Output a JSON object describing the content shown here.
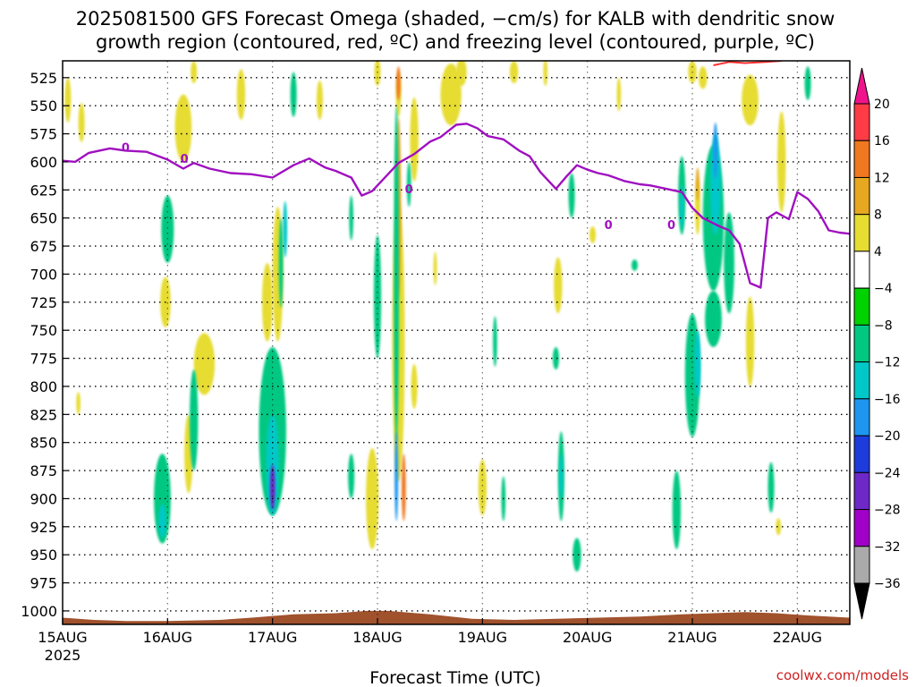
{
  "chart_data": {
    "type": "heatmap",
    "title_line1": "2025081500 GFS Forecast Omega (shaded, −cm/s) for KALB with dendritic snow",
    "title_line2": "growth region (contoured, red, ºC) and freezing level (contoured, purple, ºC)",
    "xlabel": "Forecast Time (UTC)",
    "credit": "coolwx.com/models",
    "x_ticks": [
      "15AUG",
      "16AUG",
      "17AUG",
      "18AUG",
      "19AUG",
      "20AUG",
      "21AUG",
      "22AUG"
    ],
    "x_year": "2025",
    "x_range_days": [
      0,
      7.5
    ],
    "y_ticks": [
      525,
      550,
      575,
      600,
      625,
      650,
      675,
      700,
      725,
      750,
      775,
      800,
      825,
      850,
      875,
      900,
      925,
      950,
      975,
      1000
    ],
    "y_range_hpa": [
      510,
      1012
    ],
    "grid": true,
    "colorbar": {
      "levels": [
        "20",
        "16",
        "12",
        "8",
        "4",
        "−4",
        "−8",
        "−12",
        "−16",
        "−20",
        "−24",
        "−28",
        "−32",
        "−36"
      ],
      "colors": [
        "#ff3c46",
        "#f07820",
        "#e6a820",
        "#e6dc32",
        "#ffffff",
        "#00d200",
        "#00c882",
        "#00c8c8",
        "#1e96f0",
        "#1e3cdc",
        "#6e28c8",
        "#a000c8",
        "#aaaaaa"
      ],
      "top_arrow_color": "#f0148c",
      "bottom_arrow_color": "#000000"
    },
    "freezing_level": {
      "name": "0",
      "color": "#a010c0",
      "label": "0",
      "label_positions": [
        [
          0.6,
          587
        ],
        [
          1.16,
          597
        ],
        [
          3.3,
          624
        ],
        [
          5.2,
          656
        ],
        [
          5.8,
          656
        ]
      ],
      "points": [
        [
          0.0,
          599
        ],
        [
          0.12,
          600
        ],
        [
          0.25,
          592
        ],
        [
          0.45,
          588
        ],
        [
          0.6,
          590
        ],
        [
          0.8,
          591
        ],
        [
          1.0,
          598
        ],
        [
          1.15,
          606
        ],
        [
          1.25,
          601
        ],
        [
          1.4,
          606
        ],
        [
          1.6,
          610
        ],
        [
          1.8,
          611
        ],
        [
          2.0,
          614
        ],
        [
          2.2,
          603
        ],
        [
          2.35,
          597
        ],
        [
          2.5,
          605
        ],
        [
          2.6,
          608
        ],
        [
          2.75,
          614
        ],
        [
          2.85,
          630
        ],
        [
          2.95,
          626
        ],
        [
          3.1,
          611
        ],
        [
          3.2,
          601
        ],
        [
          3.35,
          593
        ],
        [
          3.5,
          582
        ],
        [
          3.6,
          578
        ],
        [
          3.75,
          567
        ],
        [
          3.85,
          566
        ],
        [
          3.95,
          570
        ],
        [
          4.05,
          577
        ],
        [
          4.2,
          580
        ],
        [
          4.35,
          590
        ],
        [
          4.45,
          595
        ],
        [
          4.55,
          609
        ],
        [
          4.7,
          624
        ],
        [
          4.8,
          613
        ],
        [
          4.9,
          603
        ],
        [
          5.0,
          607
        ],
        [
          5.1,
          610
        ],
        [
          5.2,
          612
        ],
        [
          5.35,
          617
        ],
        [
          5.5,
          620
        ],
        [
          5.6,
          621
        ],
        [
          5.75,
          624
        ],
        [
          5.9,
          627
        ],
        [
          6.0,
          641
        ],
        [
          6.1,
          650
        ],
        [
          6.25,
          657
        ],
        [
          6.35,
          661
        ],
        [
          6.45,
          673
        ],
        [
          6.55,
          708
        ],
        [
          6.65,
          712
        ],
        [
          6.72,
          650
        ],
        [
          6.8,
          645
        ],
        [
          6.92,
          651
        ],
        [
          7.0,
          627
        ],
        [
          7.1,
          633
        ],
        [
          7.2,
          644
        ],
        [
          7.3,
          661
        ],
        [
          7.4,
          663
        ],
        [
          7.5,
          664
        ]
      ]
    },
    "dgz_contour": {
      "color": "#ff3030",
      "points": [
        [
          6.2,
          514
        ],
        [
          6.35,
          511
        ],
        [
          6.5,
          512
        ],
        [
          6.7,
          511
        ],
        [
          6.85,
          510
        ]
      ]
    },
    "terrain": {
      "color": "#a0522d",
      "points": [
        [
          0.0,
          1006
        ],
        [
          0.3,
          1008
        ],
        [
          0.6,
          1009
        ],
        [
          1.0,
          1009
        ],
        [
          1.5,
          1008
        ],
        [
          1.8,
          1006
        ],
        [
          2.2,
          1003
        ],
        [
          2.6,
          1002
        ],
        [
          2.9,
          1000
        ],
        [
          3.1,
          1000
        ],
        [
          3.5,
          1003
        ],
        [
          3.9,
          1007
        ],
        [
          4.3,
          1008
        ],
        [
          4.7,
          1007
        ],
        [
          5.1,
          1006
        ],
        [
          5.5,
          1005
        ],
        [
          5.9,
          1003
        ],
        [
          6.2,
          1002
        ],
        [
          6.5,
          1001
        ],
        [
          6.8,
          1002
        ],
        [
          7.1,
          1004
        ],
        [
          7.5,
          1006
        ]
      ]
    },
    "omega_cells": [
      {
        "x": 0.05,
        "p": 545,
        "rx": 0.03,
        "rh": 40,
        "v": 4
      },
      {
        "x": 0.18,
        "p": 565,
        "rx": 0.03,
        "rh": 35,
        "v": 4
      },
      {
        "x": 1.15,
        "p": 570,
        "rx": 0.08,
        "rh": 60,
        "v": 4
      },
      {
        "x": 1.25,
        "p": 520,
        "rx": 0.03,
        "rh": 20,
        "v": 4
      },
      {
        "x": 0.98,
        "p": 725,
        "rx": 0.05,
        "rh": 45,
        "v": 4
      },
      {
        "x": 1.35,
        "p": 780,
        "rx": 0.1,
        "rh": 55,
        "v": 4
      },
      {
        "x": 0.95,
        "p": 900,
        "rx": 0.08,
        "rh": 80,
        "v": -8
      },
      {
        "x": 0.95,
        "p": 920,
        "rx": 0.035,
        "rh": 30,
        "v": -12
      },
      {
        "x": 1.2,
        "p": 860,
        "rx": 0.04,
        "rh": 70,
        "v": 4
      },
      {
        "x": 1.0,
        "p": 660,
        "rx": 0.06,
        "rh": 60,
        "v": -8
      },
      {
        "x": 1.25,
        "p": 830,
        "rx": 0.04,
        "rh": 90,
        "v": -8
      },
      {
        "x": 0.15,
        "p": 815,
        "rx": 0.02,
        "rh": 20,
        "v": 4
      },
      {
        "x": 1.7,
        "p": 540,
        "rx": 0.04,
        "rh": 45,
        "v": 4
      },
      {
        "x": 2.0,
        "p": 840,
        "rx": 0.13,
        "rh": 150,
        "v": -8
      },
      {
        "x": 2.0,
        "p": 870,
        "rx": 0.06,
        "rh": 90,
        "v": -12
      },
      {
        "x": 2.0,
        "p": 890,
        "rx": 0.025,
        "rh": 40,
        "v": -24
      },
      {
        "x": 1.95,
        "p": 725,
        "rx": 0.05,
        "rh": 70,
        "v": 4
      },
      {
        "x": 2.05,
        "p": 700,
        "rx": 0.05,
        "rh": 120,
        "v": 4
      },
      {
        "x": 1.95,
        "p": 730,
        "rx": 0.025,
        "rh": 40,
        "v": 8
      },
      {
        "x": 2.08,
        "p": 690,
        "rx": 0.02,
        "rh": 80,
        "v": -8
      },
      {
        "x": 2.12,
        "p": 660,
        "rx": 0.02,
        "rh": 50,
        "v": -12
      },
      {
        "x": 2.2,
        "p": 540,
        "rx": 0.03,
        "rh": 40,
        "v": -8
      },
      {
        "x": 2.45,
        "p": 545,
        "rx": 0.03,
        "rh": 35,
        "v": 4
      },
      {
        "x": 2.75,
        "p": 650,
        "rx": 0.02,
        "rh": 40,
        "v": -8
      },
      {
        "x": 2.75,
        "p": 880,
        "rx": 0.03,
        "rh": 40,
        "v": -8
      },
      {
        "x": 3.0,
        "p": 520,
        "rx": 0.03,
        "rh": 25,
        "v": 4
      },
      {
        "x": 3.2,
        "p": 540,
        "rx": 0.025,
        "rh": 40,
        "v": 4
      },
      {
        "x": 3.35,
        "p": 580,
        "rx": 0.04,
        "rh": 75,
        "v": 4
      },
      {
        "x": 3.0,
        "p": 720,
        "rx": 0.035,
        "rh": 110,
        "v": -8
      },
      {
        "x": 2.95,
        "p": 900,
        "rx": 0.06,
        "rh": 90,
        "v": 4
      },
      {
        "x": 3.2,
        "p": 760,
        "rx": 0.06,
        "rh": 250,
        "v": 4
      },
      {
        "x": 3.2,
        "p": 640,
        "rx": 0.025,
        "rh": 160,
        "v": 12
      },
      {
        "x": 3.2,
        "p": 530,
        "rx": 0.02,
        "rh": 30,
        "v": 16
      },
      {
        "x": 3.18,
        "p": 700,
        "rx": 0.025,
        "rh": 300,
        "v": -8
      },
      {
        "x": 3.18,
        "p": 880,
        "rx": 0.015,
        "rh": 80,
        "v": -16
      },
      {
        "x": 3.25,
        "p": 890,
        "rx": 0.02,
        "rh": 60,
        "v": 16
      },
      {
        "x": 3.3,
        "p": 620,
        "rx": 0.02,
        "rh": 40,
        "v": -8
      },
      {
        "x": 3.35,
        "p": 800,
        "rx": 0.03,
        "rh": 40,
        "v": 4
      },
      {
        "x": 3.55,
        "p": 695,
        "rx": 0.015,
        "rh": 30,
        "v": 4
      },
      {
        "x": 3.7,
        "p": 540,
        "rx": 0.1,
        "rh": 55,
        "v": 4
      },
      {
        "x": 3.8,
        "p": 520,
        "rx": 0.05,
        "rh": 25,
        "v": 4
      },
      {
        "x": 4.12,
        "p": 760,
        "rx": 0.02,
        "rh": 45,
        "v": -8
      },
      {
        "x": 4.0,
        "p": 890,
        "rx": 0.04,
        "rh": 50,
        "v": 4
      },
      {
        "x": 4.2,
        "p": 900,
        "rx": 0.02,
        "rh": 40,
        "v": -8
      },
      {
        "x": 4.3,
        "p": 520,
        "rx": 0.04,
        "rh": 20,
        "v": 4
      },
      {
        "x": 4.6,
        "p": 520,
        "rx": 0.02,
        "rh": 25,
        "v": 4
      },
      {
        "x": 4.72,
        "p": 710,
        "rx": 0.04,
        "rh": 50,
        "v": 4
      },
      {
        "x": 4.7,
        "p": 775,
        "rx": 0.03,
        "rh": 20,
        "v": -8
      },
      {
        "x": 4.85,
        "p": 630,
        "rx": 0.03,
        "rh": 40,
        "v": -8
      },
      {
        "x": 4.75,
        "p": 880,
        "rx": 0.03,
        "rh": 80,
        "v": -8
      },
      {
        "x": 4.75,
        "p": 880,
        "rx": 0.015,
        "rh": 40,
        "v": -12
      },
      {
        "x": 4.9,
        "p": 950,
        "rx": 0.04,
        "rh": 30,
        "v": -8
      },
      {
        "x": 5.05,
        "p": 665,
        "rx": 0.03,
        "rh": 15,
        "v": 4
      },
      {
        "x": 5.3,
        "p": 540,
        "rx": 0.02,
        "rh": 30,
        "v": 4
      },
      {
        "x": 5.45,
        "p": 692,
        "rx": 0.03,
        "rh": 10,
        "v": -8
      },
      {
        "x": 5.85,
        "p": 910,
        "rx": 0.04,
        "rh": 70,
        "v": -8
      },
      {
        "x": 5.9,
        "p": 630,
        "rx": 0.035,
        "rh": 70,
        "v": -8
      },
      {
        "x": 5.9,
        "p": 640,
        "rx": 0.015,
        "rh": 40,
        "v": -12
      },
      {
        "x": 6.0,
        "p": 520,
        "rx": 0.04,
        "rh": 20,
        "v": 4
      },
      {
        "x": 6.05,
        "p": 640,
        "rx": 0.025,
        "rh": 50,
        "v": 4
      },
      {
        "x": 6.05,
        "p": 620,
        "rx": 0.015,
        "rh": 30,
        "v": 12
      },
      {
        "x": 6.0,
        "p": 790,
        "rx": 0.07,
        "rh": 110,
        "v": -8
      },
      {
        "x": 6.05,
        "p": 780,
        "rx": 0.03,
        "rh": 60,
        "v": -12
      },
      {
        "x": 6.2,
        "p": 650,
        "rx": 0.1,
        "rh": 130,
        "v": -8
      },
      {
        "x": 6.22,
        "p": 620,
        "rx": 0.05,
        "rh": 90,
        "v": -12
      },
      {
        "x": 6.22,
        "p": 590,
        "rx": 0.02,
        "rh": 50,
        "v": -16
      },
      {
        "x": 6.2,
        "p": 740,
        "rx": 0.08,
        "rh": 50,
        "v": -8
      },
      {
        "x": 6.35,
        "p": 690,
        "rx": 0.05,
        "rh": 90,
        "v": -8
      },
      {
        "x": 6.1,
        "p": 525,
        "rx": 0.04,
        "rh": 20,
        "v": 4
      },
      {
        "x": 6.55,
        "p": 545,
        "rx": 0.08,
        "rh": 45,
        "v": 4
      },
      {
        "x": 6.55,
        "p": 760,
        "rx": 0.04,
        "rh": 80,
        "v": 4
      },
      {
        "x": 6.85,
        "p": 600,
        "rx": 0.04,
        "rh": 90,
        "v": 4
      },
      {
        "x": 6.75,
        "p": 890,
        "rx": 0.03,
        "rh": 45,
        "v": -8
      },
      {
        "x": 6.82,
        "p": 925,
        "rx": 0.025,
        "rh": 15,
        "v": 4
      },
      {
        "x": 7.1,
        "p": 530,
        "rx": 0.03,
        "rh": 30,
        "v": -8
      }
    ]
  }
}
